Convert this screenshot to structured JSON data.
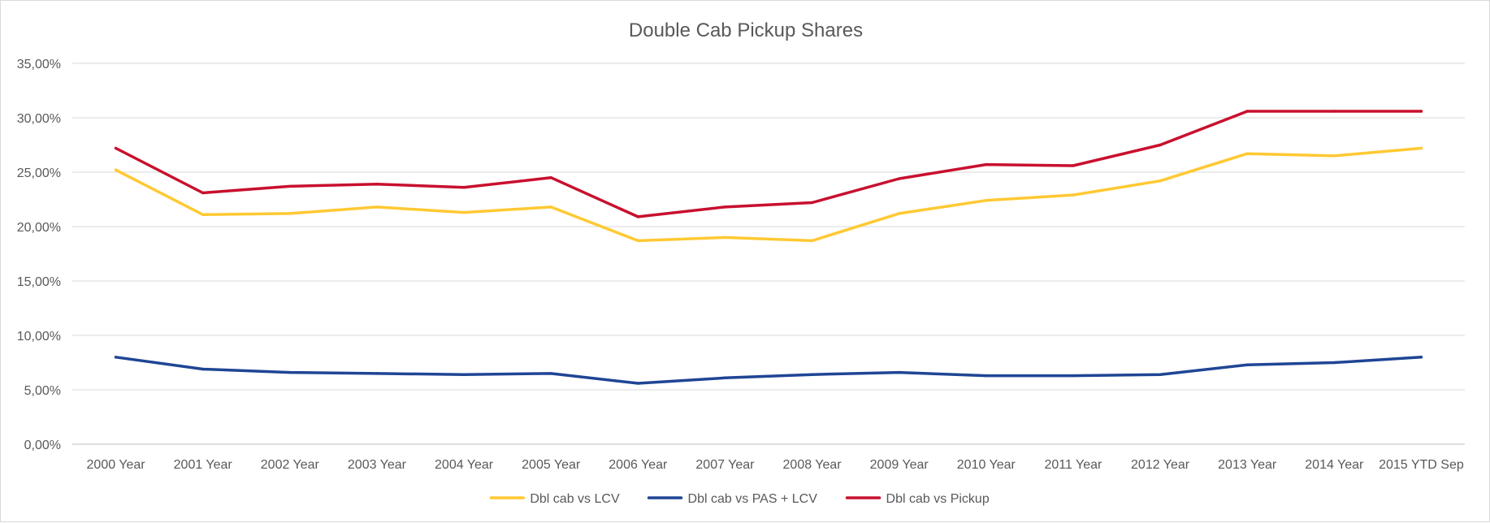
{
  "chart_data": {
    "type": "line",
    "title": "Double Cab Pickup Shares",
    "xlabel": "",
    "ylabel": "",
    "categories": [
      "2000 Year",
      "2001 Year",
      "2002 Year",
      "2003 Year",
      "2004 Year",
      "2005 Year",
      "2006 Year",
      "2007 Year",
      "2008 Year",
      "2009 Year",
      "2010 Year",
      "2011 Year",
      "2012 Year",
      "2013 Year",
      "2014 Year",
      "2015 YTD Sep"
    ],
    "ylim": [
      0,
      35
    ],
    "yticks": [
      {
        "value": 0,
        "label": "0,00%"
      },
      {
        "value": 5,
        "label": "5,00%"
      },
      {
        "value": 10,
        "label": "10,00%"
      },
      {
        "value": 15,
        "label": "15,00%"
      },
      {
        "value": 20,
        "label": "20,00%"
      },
      {
        "value": 25,
        "label": "25,00%"
      },
      {
        "value": 30,
        "label": "30,00%"
      },
      {
        "value": 35,
        "label": "35,00%"
      }
    ],
    "grid": "horizontal",
    "legend_position": "bottom",
    "series": [
      {
        "name": "Dbl cab vs LCV",
        "color": "#FFC933",
        "values": [
          25.2,
          21.1,
          21.2,
          21.8,
          21.3,
          21.8,
          18.7,
          19.0,
          18.7,
          21.2,
          22.4,
          22.9,
          24.2,
          26.7,
          26.5,
          27.2
        ]
      },
      {
        "name": "Dbl cab vs PAS + LCV",
        "color": "#1F4594",
        "values": [
          8.0,
          6.9,
          6.6,
          6.5,
          6.4,
          6.5,
          5.6,
          6.1,
          6.4,
          6.6,
          6.3,
          6.3,
          6.4,
          7.3,
          7.5,
          8.0
        ]
      },
      {
        "name": "Dbl cab vs Pickup",
        "color": "#C8102E",
        "values": [
          27.2,
          23.1,
          23.7,
          23.9,
          23.6,
          24.5,
          20.9,
          21.8,
          22.2,
          24.4,
          25.7,
          25.6,
          27.5,
          30.6,
          30.6,
          30.6
        ]
      }
    ]
  }
}
